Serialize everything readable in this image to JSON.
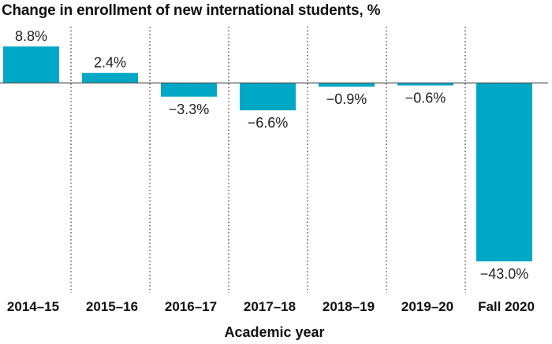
{
  "chart_data": {
    "type": "bar",
    "title": "Change in enrollment of new international students, %",
    "xlabel": "Academic year",
    "ylabel": "",
    "categories": [
      "2014–15",
      "2015–16",
      "2016–17",
      "2017–18",
      "2018–19",
      "2019–20",
      "Fall 2020"
    ],
    "values": [
      8.8,
      2.4,
      -3.3,
      -6.6,
      -0.9,
      -0.6,
      -43.0
    ],
    "value_labels": [
      "8.8%",
      "2.4%",
      "−3.3%",
      "−6.6%",
      "−0.9%",
      "−0.6%",
      "−43.0%"
    ],
    "ylim": [
      -43.0,
      8.8
    ],
    "grid": false,
    "legend": "none",
    "bar_color": "#00a8c6",
    "zero_line_color": "#555555",
    "separator_style": "dotted"
  }
}
